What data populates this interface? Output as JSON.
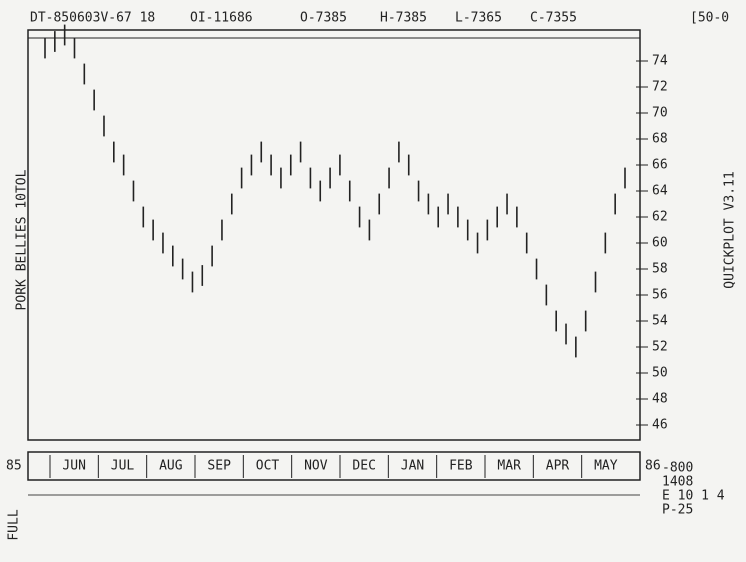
{
  "chart_data": {
    "type": "highlow",
    "header": [
      "DT-850603V-67 18",
      "OI-11686",
      "O-7385",
      "H-7385",
      "L-7365",
      "C-7355",
      "[50-0"
    ],
    "title": "PORK BELLIES 10TOL",
    "side_label": "QUICKPLOT V3.11",
    "start_year": "85",
    "end_year": "86",
    "months": [
      "JUN",
      "JUL",
      "AUG",
      "SEP",
      "OCT",
      "NOV",
      "DEC",
      "JAN",
      "FEB",
      "MAR",
      "APR",
      "MAY"
    ],
    "footer_left": "FULL",
    "footer_right": [
      "-800",
      "1408",
      "E 10 1 4",
      "P-25"
    ],
    "high": [
      75.8,
      76.3,
      76.8,
      75.8,
      73.8,
      71.8,
      69.8,
      67.8,
      66.8,
      64.8,
      62.8,
      61.8,
      60.8,
      59.8,
      58.8,
      57.8,
      58.3,
      59.8,
      61.8,
      63.8,
      65.8,
      66.8,
      67.8,
      66.8,
      65.8,
      66.8,
      67.8,
      65.8,
      64.8,
      65.8,
      66.8,
      64.8,
      62.8,
      61.8,
      63.8,
      65.8,
      67.8,
      66.8,
      64.8,
      63.8,
      62.8,
      63.8,
      62.8,
      61.8,
      60.8,
      61.8,
      62.8,
      63.8,
      62.8,
      60.8,
      58.8,
      56.8,
      54.8,
      53.8,
      52.8,
      54.8,
      57.8,
      60.8,
      63.8,
      65.8
    ],
    "low": [
      74.2,
      74.7,
      75.2,
      74.2,
      72.2,
      70.2,
      68.2,
      66.2,
      65.2,
      63.2,
      61.2,
      60.2,
      59.2,
      58.2,
      57.2,
      56.2,
      56.7,
      58.2,
      60.2,
      62.2,
      64.2,
      65.2,
      66.2,
      65.2,
      64.2,
      65.2,
      66.2,
      64.2,
      63.2,
      64.2,
      65.2,
      63.2,
      61.2,
      60.2,
      62.2,
      64.2,
      66.2,
      65.2,
      63.2,
      62.2,
      61.2,
      62.2,
      61.2,
      60.2,
      59.2,
      60.2,
      61.2,
      62.2,
      61.2,
      59.2,
      57.2,
      55.2,
      53.2,
      52.2,
      51.2,
      53.2,
      56.2,
      59.2,
      62.2,
      64.2
    ],
    "color": "#222222",
    "ylim": [
      45,
      77
    ],
    "yticks": [
      46,
      48,
      50,
      52,
      54,
      56,
      58,
      60,
      62,
      64,
      66,
      68,
      70,
      72,
      74
    ]
  }
}
